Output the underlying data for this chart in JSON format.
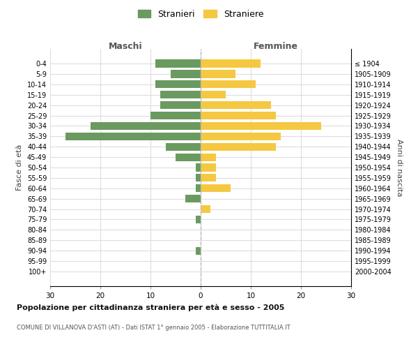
{
  "age_groups": [
    "0-4",
    "5-9",
    "10-14",
    "15-19",
    "20-24",
    "25-29",
    "30-34",
    "35-39",
    "40-44",
    "45-49",
    "50-54",
    "55-59",
    "60-64",
    "65-69",
    "70-74",
    "75-79",
    "80-84",
    "85-89",
    "90-94",
    "95-99",
    "100+"
  ],
  "birth_years": [
    "2000-2004",
    "1995-1999",
    "1990-1994",
    "1985-1989",
    "1980-1984",
    "1975-1979",
    "1970-1974",
    "1965-1969",
    "1960-1964",
    "1955-1959",
    "1950-1954",
    "1945-1949",
    "1940-1944",
    "1935-1939",
    "1930-1934",
    "1925-1929",
    "1920-1924",
    "1915-1919",
    "1910-1914",
    "1905-1909",
    "≤ 1904"
  ],
  "maschi": [
    9,
    6,
    9,
    8,
    8,
    10,
    22,
    27,
    7,
    5,
    1,
    1,
    1,
    3,
    0,
    1,
    0,
    0,
    1,
    0,
    0
  ],
  "femmine": [
    12,
    7,
    11,
    5,
    14,
    15,
    24,
    16,
    15,
    3,
    3,
    3,
    6,
    0,
    2,
    0,
    0,
    0,
    0,
    0,
    0
  ],
  "color_maschi": "#6a9a5f",
  "color_femmine": "#f5c842",
  "title": "Popolazione per cittadinanza straniera per età e sesso - 2005",
  "subtitle": "COMUNE DI VILLANOVA D'ASTI (AT) - Dati ISTAT 1° gennaio 2005 - Elaborazione TUTTITALIA.IT",
  "xlabel_left": "Maschi",
  "xlabel_right": "Femmine",
  "ylabel_left": "Fasce di età",
  "ylabel_right": "Anni di nascita",
  "legend_maschi": "Stranieri",
  "legend_femmine": "Straniere",
  "xlim": 30,
  "background_color": "#ffffff",
  "grid_color": "#dddddd"
}
